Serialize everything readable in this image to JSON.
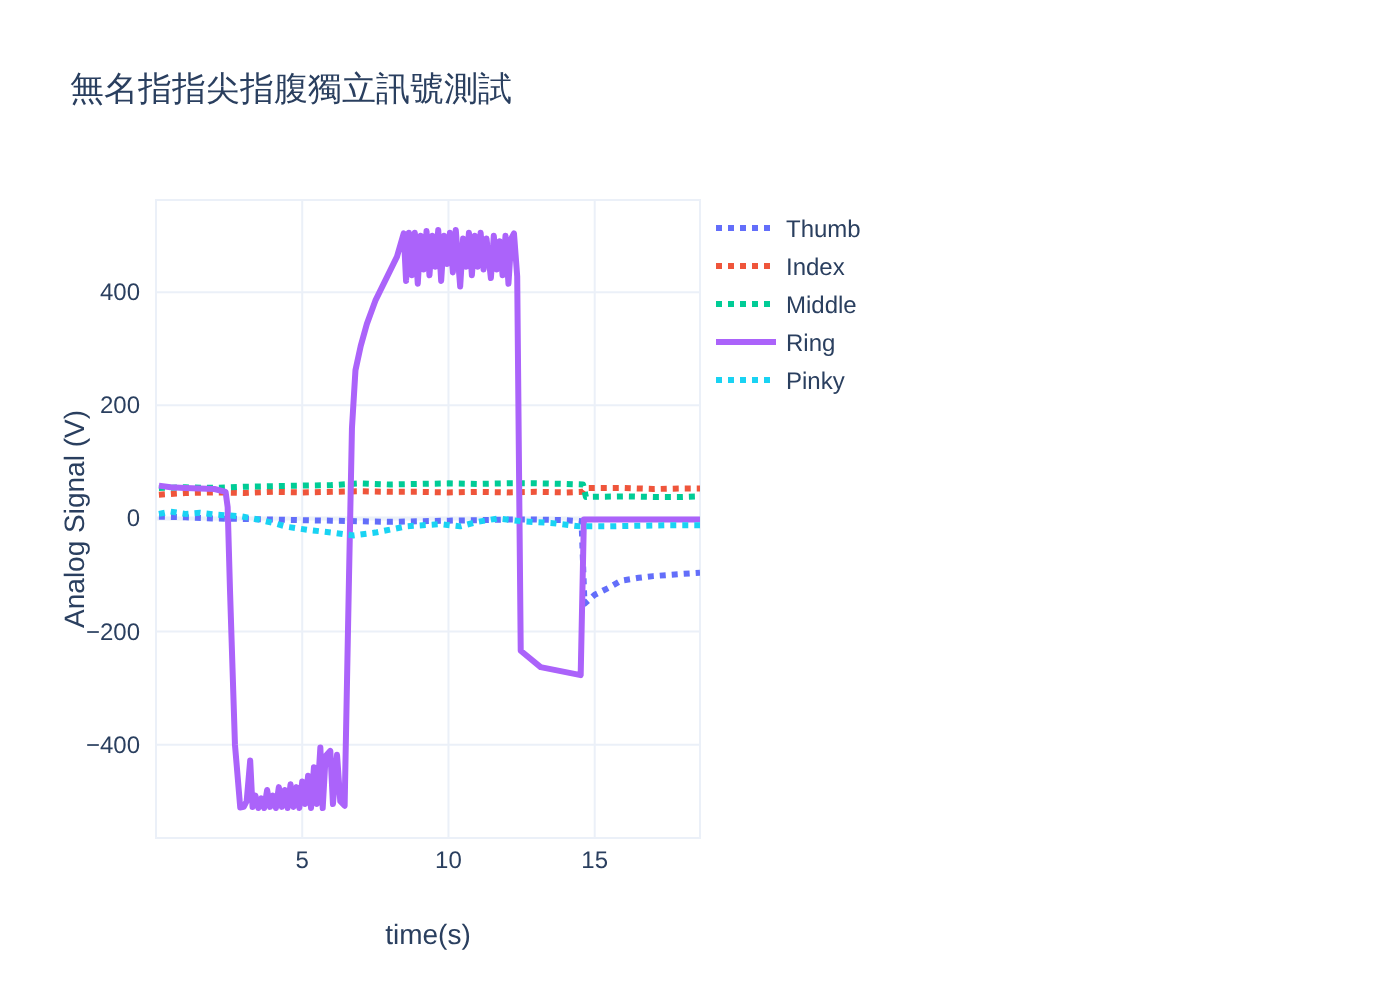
{
  "chart_data": {
    "type": "line",
    "title": "無名指指尖指腹獨立訊號測試",
    "xlabel": "time(s)",
    "ylabel": "Analog Signal (V)",
    "xlim": [
      0,
      18.6
    ],
    "ylim": [
      -565,
      563
    ],
    "xticks": [
      5,
      10,
      15
    ],
    "yticks": [
      -400,
      -200,
      0,
      200,
      400
    ],
    "grid": true,
    "legend": "top right",
    "series": [
      {
        "name": "Thumb",
        "color": "#636efa",
        "line_style": "dotted",
        "x": [
          0.1,
          1,
          2,
          3,
          4,
          5,
          6,
          7,
          8,
          9,
          10,
          11,
          12,
          13,
          14,
          14.55,
          14.65,
          15,
          15.5,
          15.9,
          16.5,
          17,
          17.5,
          18,
          18.6
        ],
        "values": [
          3,
          2,
          0,
          -1,
          -2,
          -3,
          -4,
          -5,
          -6,
          -5,
          -4,
          -3,
          -2,
          -2,
          -3,
          -5,
          -151,
          -135,
          -122,
          -110,
          -105,
          -102,
          -100,
          -98,
          -96
        ]
      },
      {
        "name": "Index",
        "color": "#ef553b",
        "line_style": "dotted",
        "x": [
          0.1,
          1,
          2,
          3,
          4,
          5,
          6,
          7,
          8,
          9,
          10,
          11,
          12,
          13,
          14,
          14.6,
          14.7,
          16,
          17,
          18,
          18.6
        ],
        "values": [
          42,
          45,
          46,
          45,
          47,
          46,
          47,
          48,
          47,
          47,
          46,
          47,
          46,
          47,
          46,
          47,
          54,
          54,
          52,
          53,
          53
        ]
      },
      {
        "name": "Middle",
        "color": "#00cc96",
        "line_style": "dotted",
        "x": [
          0.1,
          1,
          2,
          3,
          4,
          5,
          6,
          7,
          8,
          9,
          10,
          11,
          12,
          13,
          14,
          14.6,
          14.7,
          16,
          17,
          18,
          18.6
        ],
        "values": [
          54,
          55,
          54,
          56,
          57,
          58,
          59,
          62,
          60,
          61,
          62,
          61,
          62,
          62,
          61,
          60,
          38,
          39,
          38,
          38,
          39
        ]
      },
      {
        "name": "Ring",
        "color": "#ab63fa",
        "line_style": "solid",
        "x": [
          0.1,
          0.5,
          1,
          1.5,
          2,
          2.38,
          2.45,
          2.53,
          2.7,
          2.88,
          3,
          3.1,
          3.22,
          3.3,
          3.4,
          3.5,
          3.6,
          3.7,
          3.8,
          3.9,
          4,
          4.1,
          4.2,
          4.3,
          4.4,
          4.5,
          4.6,
          4.7,
          4.8,
          4.9,
          5,
          5.1,
          5.2,
          5.3,
          5.4,
          5.5,
          5.62,
          5.7,
          5.8,
          5.96,
          6.05,
          6.19,
          6.3,
          6.45,
          6.6,
          6.7,
          6.82,
          7,
          7.21,
          7.5,
          7.9,
          8.24,
          8.47,
          8.55,
          8.65,
          8.75,
          8.85,
          8.95,
          9.05,
          9.15,
          9.25,
          9.35,
          9.45,
          9.55,
          9.65,
          9.75,
          9.85,
          9.95,
          10.05,
          10.15,
          10.25,
          10.4,
          10.5,
          10.6,
          10.7,
          10.8,
          10.9,
          11,
          11.1,
          11.2,
          11.3,
          11.45,
          11.55,
          11.65,
          11.75,
          11.85,
          11.95,
          12.05,
          12.15,
          12.24,
          12.35,
          12.47,
          13.15,
          14.52,
          14.63,
          16,
          18.6
        ],
        "values": [
          58,
          55,
          54,
          53,
          52,
          47,
          20,
          -127,
          -400,
          -511,
          -510,
          -500,
          -428,
          -510,
          -490,
          -512,
          -495,
          -512,
          -480,
          -510,
          -490,
          -512,
          -475,
          -510,
          -480,
          -512,
          -470,
          -510,
          -475,
          -512,
          -465,
          -505,
          -455,
          -512,
          -440,
          -505,
          -405,
          -512,
          -420,
          -411,
          -505,
          -418,
          -500,
          -508,
          -100,
          160,
          262,
          305,
          344,
          385,
          427,
          463,
          504,
          420,
          505,
          430,
          505,
          415,
          500,
          440,
          508,
          430,
          500,
          445,
          510,
          420,
          500,
          450,
          505,
          435,
          510,
          410,
          495,
          445,
          505,
          430,
          500,
          445,
          505,
          440,
          495,
          425,
          500,
          440,
          490,
          430,
          500,
          415,
          495,
          504,
          428,
          -234,
          -263,
          -277,
          -2,
          -2,
          -2
        ]
      },
      {
        "name": "Pinky",
        "color": "#19d3f3",
        "line_style": "dotted",
        "x": [
          0.1,
          0.5,
          1,
          1.5,
          2,
          2.88,
          3.5,
          4,
          4.5,
          5.16,
          6,
          6.74,
          7.5,
          8.56,
          9.7,
          10.4,
          11,
          11.7,
          12.5,
          13.5,
          14.5,
          15.5,
          16.5,
          17.5,
          18.6
        ],
        "values": [
          8,
          12,
          8,
          10,
          7,
          4,
          -2,
          -8,
          -15,
          -20,
          -25,
          -30,
          -25,
          -14,
          -10,
          -14,
          -6,
          0,
          -5,
          -8,
          -14,
          -14,
          -13,
          -12,
          -12
        ]
      }
    ]
  }
}
